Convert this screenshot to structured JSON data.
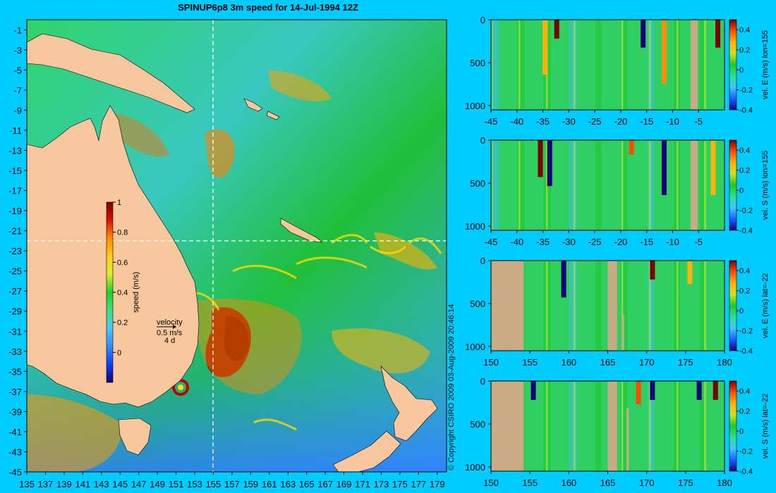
{
  "colors": {
    "background": "#00ccff",
    "land": "#f9c79d",
    "mask": "#c9aa85",
    "frame": "#000000",
    "speed_colormap": [
      "#14007a",
      "#0a3fff",
      "#2f8fff",
      "#49c7ff",
      "#3ee07a",
      "#1fcf2f",
      "#d7f02b",
      "#ffcf14",
      "#ff8b00",
      "#d91500",
      "#7a0000"
    ],
    "vel_colormap": [
      "#1a0078",
      "#1c5eff",
      "#43c6ff",
      "#2ee08e",
      "#20c826",
      "#cfe21e",
      "#ffb10a",
      "#ff4d00",
      "#7d0000"
    ]
  },
  "chart_data": [
    {
      "id": "map",
      "type": "heatmap",
      "title": "SPINUP6p8 3m speed for 14-Jul-1994 12Z",
      "x_ticks": [
        "135",
        "137",
        "139",
        "141",
        "143",
        "145",
        "147",
        "149",
        "151",
        "153",
        "155",
        "157",
        "159",
        "161",
        "163",
        "165",
        "167",
        "169",
        "171",
        "173",
        "175",
        "177",
        "179"
      ],
      "x_values": [
        135,
        137,
        139,
        141,
        143,
        145,
        147,
        149,
        151,
        153,
        155,
        157,
        159,
        161,
        163,
        165,
        167,
        169,
        171,
        173,
        175,
        177,
        179
      ],
      "xlim": [
        135,
        180
      ],
      "y_ticks": [
        "-1",
        "-3",
        "-5",
        "-7",
        "-9",
        "-11",
        "-13",
        "-15",
        "-17",
        "-19",
        "-21",
        "-23",
        "-25",
        "-27",
        "-29",
        "-31",
        "-33",
        "-35",
        "-37",
        "-39",
        "-41",
        "-43",
        "-45"
      ],
      "y_values": [
        -1,
        -3,
        -5,
        -7,
        -9,
        -11,
        -13,
        -15,
        -17,
        -19,
        -21,
        -23,
        -25,
        -27,
        -29,
        -31,
        -33,
        -35,
        -37,
        -39,
        -41,
        -43,
        -45
      ],
      "ylim": [
        -45,
        0
      ],
      "section_lon": 155,
      "section_lat": -22,
      "colorbar": {
        "label": "speed (m/s)",
        "range": [
          -0.2,
          1
        ],
        "ticks": [
          "1",
          "0.8",
          "0.6",
          "0.4",
          "0.2",
          "0"
        ],
        "tick_values": [
          1,
          0.8,
          0.6,
          0.4,
          0.2,
          0
        ]
      },
      "velocity_key": {
        "title": "velocity",
        "speed": "0.5 m/s",
        "days": "4 d"
      }
    },
    {
      "id": "p1",
      "type": "heatmap",
      "x_ticks": [
        "-45",
        "-40",
        "-35",
        "-30",
        "-25",
        "-20",
        "-15",
        "-10",
        "-5"
      ],
      "x_values": [
        -45,
        -40,
        -35,
        -30,
        -25,
        -20,
        -15,
        -10,
        -5
      ],
      "xlim": [
        -45,
        0
      ],
      "y_ticks": [
        "0",
        "500",
        "1000"
      ],
      "y_values": [
        0,
        500,
        1000
      ],
      "ylim": [
        0,
        1050
      ],
      "colorbar": {
        "label": "vel. E (m/s) lon=155",
        "range": [
          -0.4,
          0.5
        ],
        "ticks": [
          "0.4",
          "0.2",
          "0",
          "-0.2",
          "-0.4"
        ],
        "tick_values": [
          0.4,
          0.2,
          0,
          -0.2,
          -0.4
        ]
      }
    },
    {
      "id": "p2",
      "type": "heatmap",
      "x_ticks": [
        "-45",
        "-40",
        "-35",
        "-30",
        "-25",
        "-20",
        "-15",
        "-10",
        "-5"
      ],
      "x_values": [
        -45,
        -40,
        -35,
        -30,
        -25,
        -20,
        -15,
        -10,
        -5
      ],
      "xlim": [
        -45,
        0
      ],
      "y_ticks": [
        "0",
        "500",
        "1000"
      ],
      "y_values": [
        0,
        500,
        1000
      ],
      "ylim": [
        0,
        1050
      ],
      "colorbar": {
        "label": "vel. S (m/s) lon=155",
        "range": [
          -0.4,
          0.5
        ],
        "ticks": [
          "0.4",
          "0.2",
          "0",
          "-0.2",
          "-0.4"
        ],
        "tick_values": [
          0.4,
          0.2,
          0,
          -0.2,
          -0.4
        ]
      }
    },
    {
      "id": "p3",
      "type": "heatmap",
      "x_ticks": [
        "150",
        "155",
        "160",
        "165",
        "170",
        "175",
        "180"
      ],
      "x_values": [
        150,
        155,
        160,
        165,
        170,
        175,
        180
      ],
      "xlim": [
        150,
        180
      ],
      "y_ticks": [
        "0",
        "500",
        "1000"
      ],
      "y_values": [
        0,
        500,
        1000
      ],
      "ylim": [
        0,
        1050
      ],
      "colorbar": {
        "label": "vel. E (m/s) lat=-22",
        "range": [
          -0.4,
          0.5
        ],
        "ticks": [
          "0.4",
          "0.2",
          "0",
          "-0.2",
          "-0.4"
        ],
        "tick_values": [
          0.4,
          0.2,
          0,
          -0.2,
          -0.4
        ]
      }
    },
    {
      "id": "p4",
      "type": "heatmap",
      "x_ticks": [
        "150",
        "155",
        "160",
        "165",
        "170",
        "175",
        "180"
      ],
      "x_values": [
        150,
        155,
        160,
        165,
        170,
        175,
        180
      ],
      "xlim": [
        150,
        180
      ],
      "y_ticks": [
        "0",
        "500",
        "1000"
      ],
      "y_values": [
        0,
        500,
        1000
      ],
      "ylim": [
        0,
        1050
      ],
      "colorbar": {
        "label": "vel. S (m/s) lat=-22",
        "range": [
          -0.4,
          0.5
        ],
        "ticks": [
          "0.4",
          "0.2",
          "0",
          "-0.2",
          "-0.4"
        ],
        "tick_values": [
          0.4,
          0.2,
          0,
          -0.2,
          -0.4
        ]
      }
    }
  ],
  "copyright": "© Copyright CSIRO 2009   03-Aug-2009 20:46:14"
}
